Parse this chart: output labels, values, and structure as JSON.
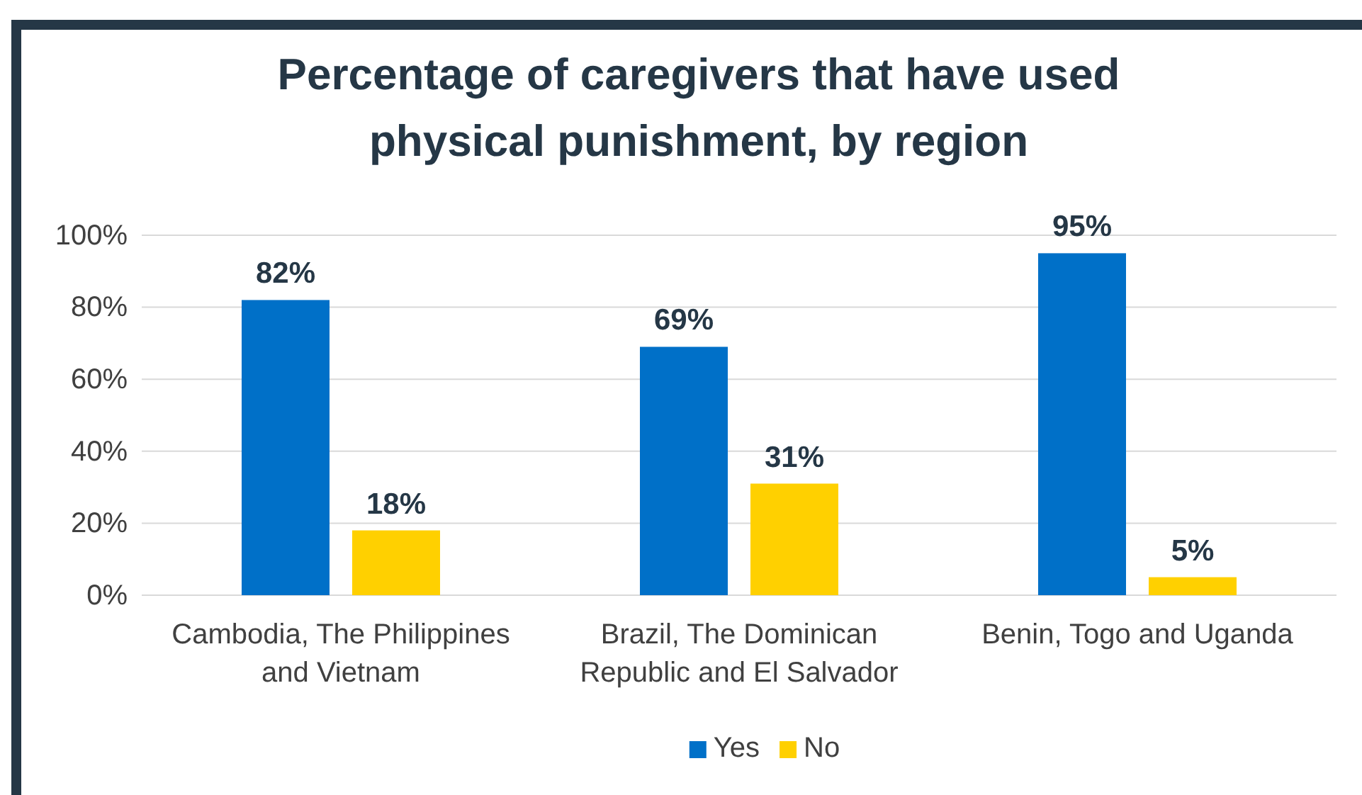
{
  "chart_data": {
    "type": "bar",
    "title": "Percentage of caregivers that have used physical punishment, by region",
    "categories": [
      "Cambodia, The Philippines and Vietnam",
      "Brazil, The Dominican Republic and El Salvador",
      "Benin, Togo and Uganda"
    ],
    "series": [
      {
        "name": "Yes",
        "color": "#0070c8",
        "values": [
          82,
          69,
          95
        ],
        "value_labels": [
          "82%",
          "69%",
          "95%"
        ]
      },
      {
        "name": "No",
        "color": "#ffd000",
        "values": [
          18,
          31,
          5
        ],
        "value_labels": [
          "18%",
          "31%",
          "5%"
        ]
      }
    ],
    "ylim": [
      0,
      100
    ],
    "yticks": [
      {
        "value": 0,
        "label": "0%"
      },
      {
        "value": 20,
        "label": "20%"
      },
      {
        "value": 40,
        "label": "40%"
      },
      {
        "value": 60,
        "label": "60%"
      },
      {
        "value": 80,
        "label": "80%"
      },
      {
        "value": 100,
        "label": "100%"
      }
    ],
    "grid": "y",
    "legend": "bottom"
  }
}
